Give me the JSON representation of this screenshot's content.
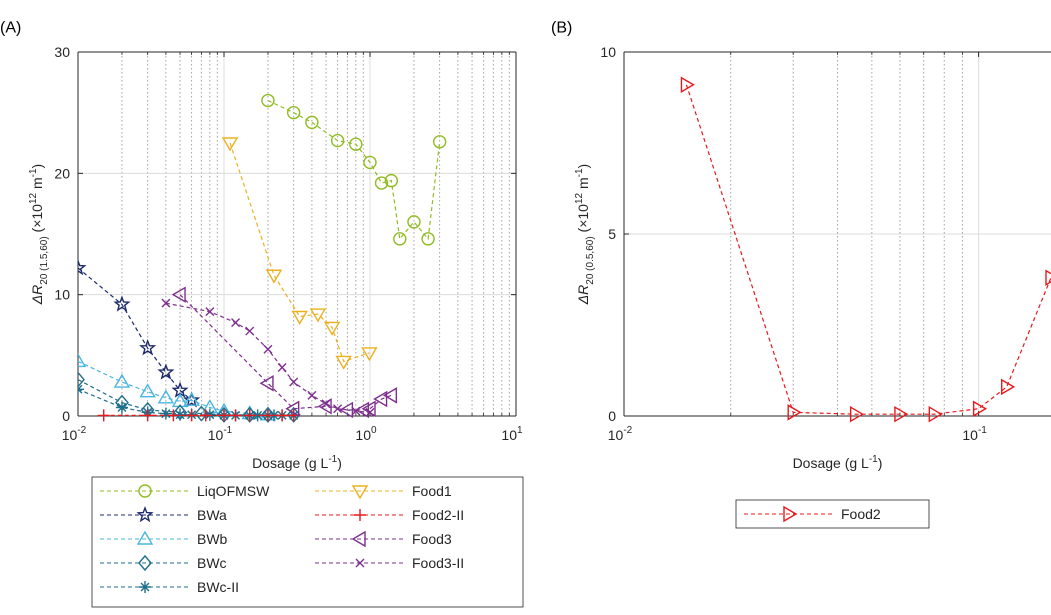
{
  "chart_data": [
    {
      "panel": "(A)",
      "type": "line",
      "xscale": "log",
      "xlim": [
        0.01,
        10
      ],
      "ylim": [
        0,
        30
      ],
      "xticks": [
        "10",
        "10",
        "10",
        "10"
      ],
      "xtick_exp": [
        "-2",
        "-1",
        "0",
        "1"
      ],
      "yticks": [
        "0",
        "10",
        "20",
        "30"
      ],
      "xlabel": {
        "main": "Dosage (g L",
        "sup": "-1",
        "close": ")"
      },
      "ylabel": {
        "delta": "ΔR",
        "sub1": "20 (1.5,60)",
        "open": " (×10",
        "sup1": "12",
        "mid": " m",
        "sup2": "-1",
        "close": ")"
      },
      "grid": true,
      "legend": "below",
      "series": [
        {
          "name": "LiqOFMSW",
          "color": "#8fbc21",
          "marker": "circle",
          "x": [
            0.2,
            0.3,
            0.4,
            0.6,
            0.8,
            1.0,
            1.2,
            1.4,
            1.6,
            2.0,
            2.5,
            3.0
          ],
          "y": [
            26.0,
            25.0,
            24.2,
            22.7,
            22.4,
            20.9,
            19.2,
            19.4,
            14.6,
            16.0,
            14.6,
            22.6
          ]
        },
        {
          "name": "BWa",
          "color": "#1b2a6b",
          "marker": "star",
          "x": [
            0.01,
            0.02,
            0.03,
            0.04,
            0.05,
            0.06
          ],
          "y": [
            12.2,
            9.2,
            5.6,
            3.6,
            2.1,
            1.3
          ]
        },
        {
          "name": "BWb",
          "color": "#49b6e0",
          "marker": "triangle-up",
          "x": [
            0.01,
            0.02,
            0.03,
            0.04,
            0.05,
            0.06,
            0.08,
            0.1,
            0.15,
            0.2
          ],
          "y": [
            4.5,
            2.8,
            2.0,
            1.5,
            1.2,
            1.3,
            0.7,
            0.4,
            0.2,
            0.1
          ]
        },
        {
          "name": "BWc",
          "color": "#1f6e8c",
          "marker": "diamond",
          "x": [
            0.01,
            0.02,
            0.03,
            0.05,
            0.07,
            0.1,
            0.15,
            0.2,
            0.3
          ],
          "y": [
            3.0,
            1.1,
            0.5,
            0.3,
            0.2,
            0.1,
            0.1,
            0.1,
            0.1
          ]
        },
        {
          "name": "BWc-II",
          "color": "#1f6e8c",
          "marker": "asterisk",
          "x": [
            0.01,
            0.02,
            0.03,
            0.04,
            0.05,
            0.06,
            0.08,
            0.1,
            0.12,
            0.15,
            0.17,
            0.2,
            0.22,
            0.25,
            0.3
          ],
          "y": [
            2.2,
            0.7,
            0.3,
            0.2,
            0.1,
            0.1,
            0.1,
            0.05,
            0.05,
            0.05,
            0.05,
            0.05,
            0.05,
            0.05,
            0.05
          ]
        },
        {
          "name": "Food1",
          "color": "#ecb01f",
          "marker": "triangle-down",
          "x": [
            0.11,
            0.22,
            0.33,
            0.44,
            0.55,
            0.66,
            0.99
          ],
          "y": [
            22.5,
            11.6,
            8.2,
            8.4,
            7.3,
            4.5,
            5.2
          ]
        },
        {
          "name": "Food2-II",
          "color": "#e8191c",
          "marker": "plus",
          "x": [
            0.015,
            0.03,
            0.045,
            0.06,
            0.075,
            0.1,
            0.12,
            0.15,
            0.2,
            0.25,
            0.3
          ],
          "y": [
            0.05,
            0.05,
            0.05,
            0.05,
            0.05,
            0.05,
            0.05,
            0.05,
            0.05,
            0.05,
            0.05
          ]
        },
        {
          "name": "Food3",
          "color": "#7e2f8e",
          "marker": "triangle-left",
          "x": [
            0.05,
            0.2,
            0.3,
            0.5,
            0.7,
            0.9,
            1.0,
            1.2,
            1.4
          ],
          "y": [
            10.0,
            2.7,
            0.6,
            0.8,
            0.5,
            0.5,
            0.6,
            1.4,
            1.7
          ]
        },
        {
          "name": "Food3-II",
          "color": "#7e2f8e",
          "marker": "cross",
          "x": [
            0.04,
            0.08,
            0.12,
            0.15,
            0.2,
            0.25,
            0.3,
            0.4,
            0.5,
            0.6,
            0.8,
            1.0
          ],
          "y": [
            9.3,
            8.6,
            7.7,
            7.0,
            5.5,
            4.0,
            2.8,
            1.7,
            1.0,
            0.6,
            0.4,
            0.3
          ]
        }
      ]
    },
    {
      "panel": "(B)",
      "type": "line",
      "xscale": "log",
      "xlim": [
        0.01,
        0.16
      ],
      "ylim": [
        0,
        10
      ],
      "xticks": [
        "10",
        "10"
      ],
      "xtick_exp": [
        "-2",
        "-1"
      ],
      "yticks": [
        "0",
        "5",
        "10"
      ],
      "xlabel": {
        "main": "Dosage (g L",
        "sup": "-1",
        "close": ")"
      },
      "ylabel": {
        "delta": "ΔR",
        "sub1": "20 (0.5,60)",
        "open": " (×10",
        "sup1": "12",
        "mid": " m",
        "sup2": "-1",
        "close": ")"
      },
      "grid": true,
      "legend": "below",
      "series": [
        {
          "name": "Food2",
          "color": "#e8191c",
          "marker": "triangle-right",
          "x": [
            0.015,
            0.03,
            0.045,
            0.06,
            0.075,
            0.1,
            0.12,
            0.16
          ],
          "y": [
            9.1,
            0.1,
            0.05,
            0.05,
            0.05,
            0.2,
            0.8,
            3.8
          ]
        }
      ]
    }
  ]
}
